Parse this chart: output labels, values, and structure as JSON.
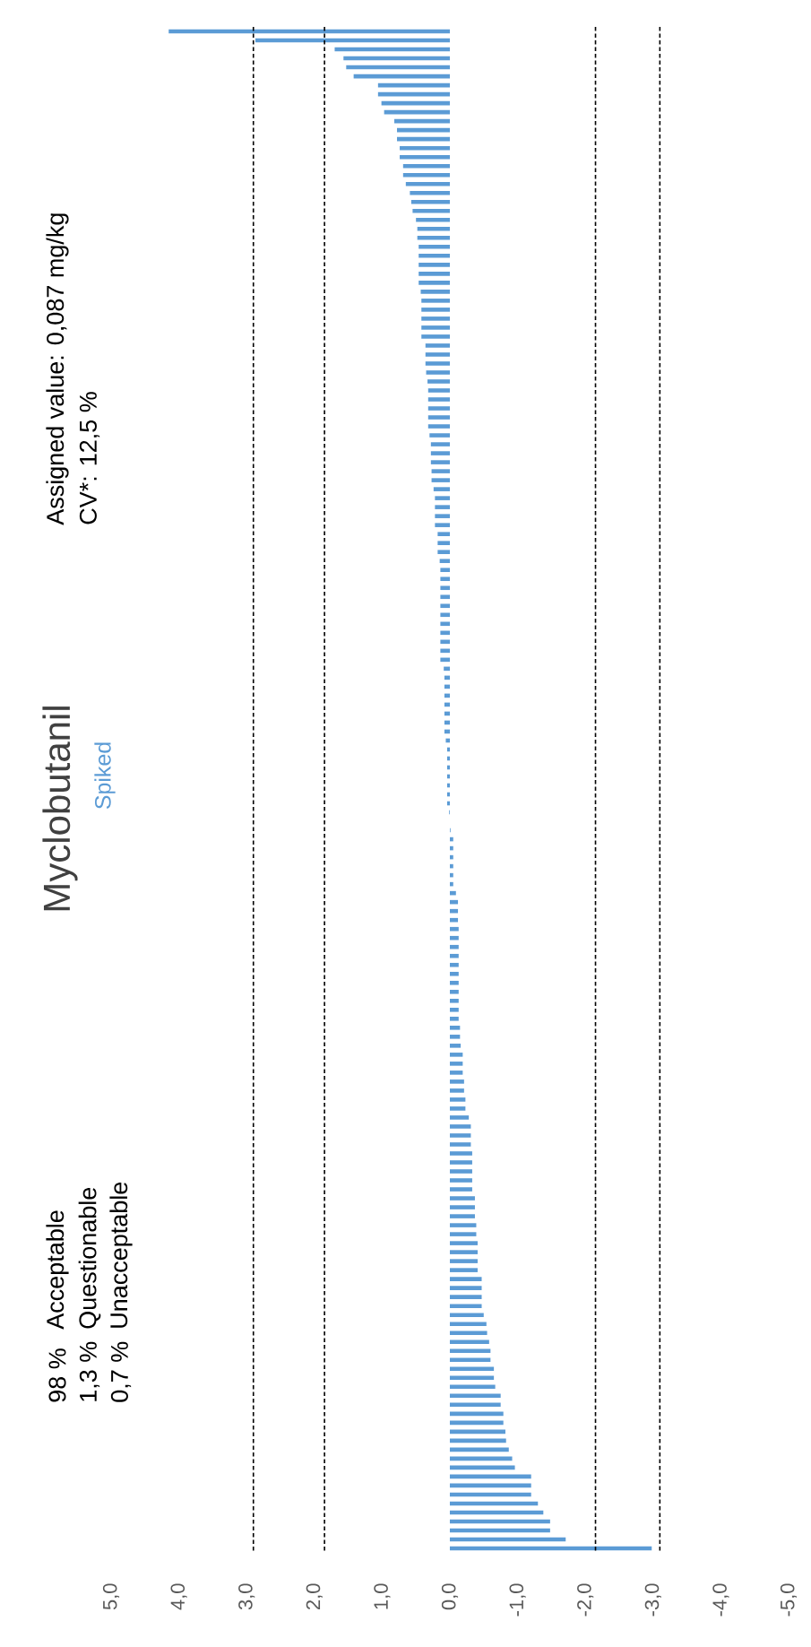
{
  "chart_data": {
    "type": "bar",
    "orientation": "horizontal",
    "title": "Myclobutanil",
    "subtitle": "Spiked",
    "annotations": [
      "Assigned value:  0,087 mg/kg",
      "CV*:  12,5 %",
      "98 %",
      "Acceptable",
      "1,3 %",
      "Questionable",
      "0,7 %",
      "Unacceptable"
    ],
    "categories": [
      null,
      null,
      null,
      null,
      null,
      null,
      null,
      null,
      null,
      null,
      null,
      null,
      null,
      null,
      null,
      null,
      null,
      null,
      null,
      null,
      null,
      null,
      null,
      null,
      null,
      null,
      null,
      null,
      null,
      null,
      null,
      null,
      null,
      null,
      null,
      null,
      null,
      null,
      null,
      null,
      null,
      null,
      null,
      null,
      null,
      null,
      null,
      null,
      null,
      null,
      null,
      null,
      null,
      null,
      null,
      null,
      null,
      null,
      null,
      null,
      null,
      null,
      null,
      null,
      null,
      null,
      null,
      null,
      null,
      null,
      null,
      null,
      null,
      null,
      null,
      null,
      null,
      null,
      null,
      null,
      null,
      null,
      null,
      null,
      null,
      null,
      null,
      null,
      null,
      null,
      null,
      null,
      null,
      null,
      null,
      null,
      null,
      null,
      null,
      null,
      null,
      null,
      null,
      null,
      null,
      null,
      null,
      null,
      null,
      null,
      null,
      null,
      null,
      null,
      null,
      null,
      null,
      null,
      null,
      null,
      null,
      null,
      null,
      null,
      null,
      null,
      null,
      null,
      null,
      null,
      null,
      null,
      null,
      null,
      null,
      null,
      null,
      null,
      null,
      null,
      null,
      null,
      null,
      null,
      null,
      null,
      null,
      null,
      null,
      null,
      null,
      null,
      null,
      null,
      null,
      null,
      null,
      null,
      null,
      null,
      null,
      null,
      null,
      null,
      null,
      null,
      null,
      null,
      null,
      null
    ],
    "values": [
      4.15,
      2.87,
      1.7,
      1.57,
      1.53,
      1.42,
      1.06,
      1.06,
      1.01,
      0.97,
      0.82,
      0.78,
      0.78,
      0.74,
      0.74,
      0.69,
      0.69,
      0.65,
      0.59,
      0.57,
      0.55,
      0.5,
      0.48,
      0.48,
      0.46,
      0.46,
      0.46,
      0.46,
      0.46,
      0.43,
      0.42,
      0.42,
      0.42,
      0.42,
      0.42,
      0.36,
      0.36,
      0.36,
      0.35,
      0.33,
      0.32,
      0.32,
      0.32,
      0.32,
      0.32,
      0.3,
      0.28,
      0.28,
      0.28,
      0.27,
      0.27,
      0.24,
      0.22,
      0.22,
      0.22,
      0.22,
      0.18,
      0.18,
      0.18,
      0.15,
      0.14,
      0.14,
      0.14,
      0.14,
      0.14,
      0.14,
      0.14,
      0.14,
      0.14,
      0.14,
      0.14,
      0.09,
      0.08,
      0.08,
      0.08,
      0.08,
      0.08,
      0.08,
      0.08,
      0.06,
      0.04,
      0.04,
      0.04,
      0.04,
      0.04,
      0.04,
      0.04,
      0.01,
      0,
      -0.01,
      -0.05,
      -0.05,
      -0.05,
      -0.05,
      -0.05,
      -0.05,
      -0.09,
      -0.12,
      -0.12,
      -0.12,
      -0.13,
      -0.13,
      -0.13,
      -0.13,
      -0.13,
      -0.13,
      -0.13,
      -0.13,
      -0.13,
      -0.13,
      -0.13,
      -0.15,
      -0.15,
      -0.16,
      -0.19,
      -0.19,
      -0.19,
      -0.21,
      -0.21,
      -0.23,
      -0.23,
      -0.28,
      -0.31,
      -0.31,
      -0.31,
      -0.33,
      -0.33,
      -0.33,
      -0.33,
      -0.33,
      -0.37,
      -0.37,
      -0.37,
      -0.39,
      -0.39,
      -0.41,
      -0.41,
      -0.41,
      -0.41,
      -0.47,
      -0.47,
      -0.47,
      -0.47,
      -0.5,
      -0.54,
      -0.55,
      -0.58,
      -0.6,
      -0.6,
      -0.65,
      -0.65,
      -0.67,
      -0.75,
      -0.75,
      -0.79,
      -0.79,
      -0.82,
      -0.83,
      -0.87,
      -0.92,
      -0.96,
      -1.2,
      -1.2,
      -1.2,
      -1.3,
      -1.38,
      -1.48,
      -1.48,
      -1.71,
      -2.98
    ],
    "color": "#5b9bd5",
    "xlim": [
      5,
      -5
    ],
    "xticks": [
      {
        "value": 5,
        "label": "5,0"
      },
      {
        "value": 4,
        "label": "4,0"
      },
      {
        "value": 3,
        "label": "3,0"
      },
      {
        "value": 2,
        "label": "2,0"
      },
      {
        "value": 1,
        "label": "1,0"
      },
      {
        "value": 0,
        "label": "0,0"
      },
      {
        "value": -1,
        "label": "-1,0"
      },
      {
        "value": -2,
        "label": "-2,0"
      },
      {
        "value": -3,
        "label": "-3,0"
      },
      {
        "value": -4,
        "label": "-4,0"
      },
      {
        "value": -5,
        "label": "-5,0"
      }
    ],
    "tick_labels": "x",
    "ref_lines": [
      {
        "axis": "x",
        "value": 2.9,
        "color": "#000000",
        "line_style": "dashed"
      },
      {
        "axis": "x",
        "value": 1.85,
        "color": "#000000",
        "line_style": "dashed"
      },
      {
        "axis": "x",
        "value": -2.15,
        "color": "#000000",
        "line_style": "dashed"
      },
      {
        "axis": "x",
        "value": -3.1,
        "color": "#000000",
        "line_style": "dashed"
      }
    ]
  }
}
